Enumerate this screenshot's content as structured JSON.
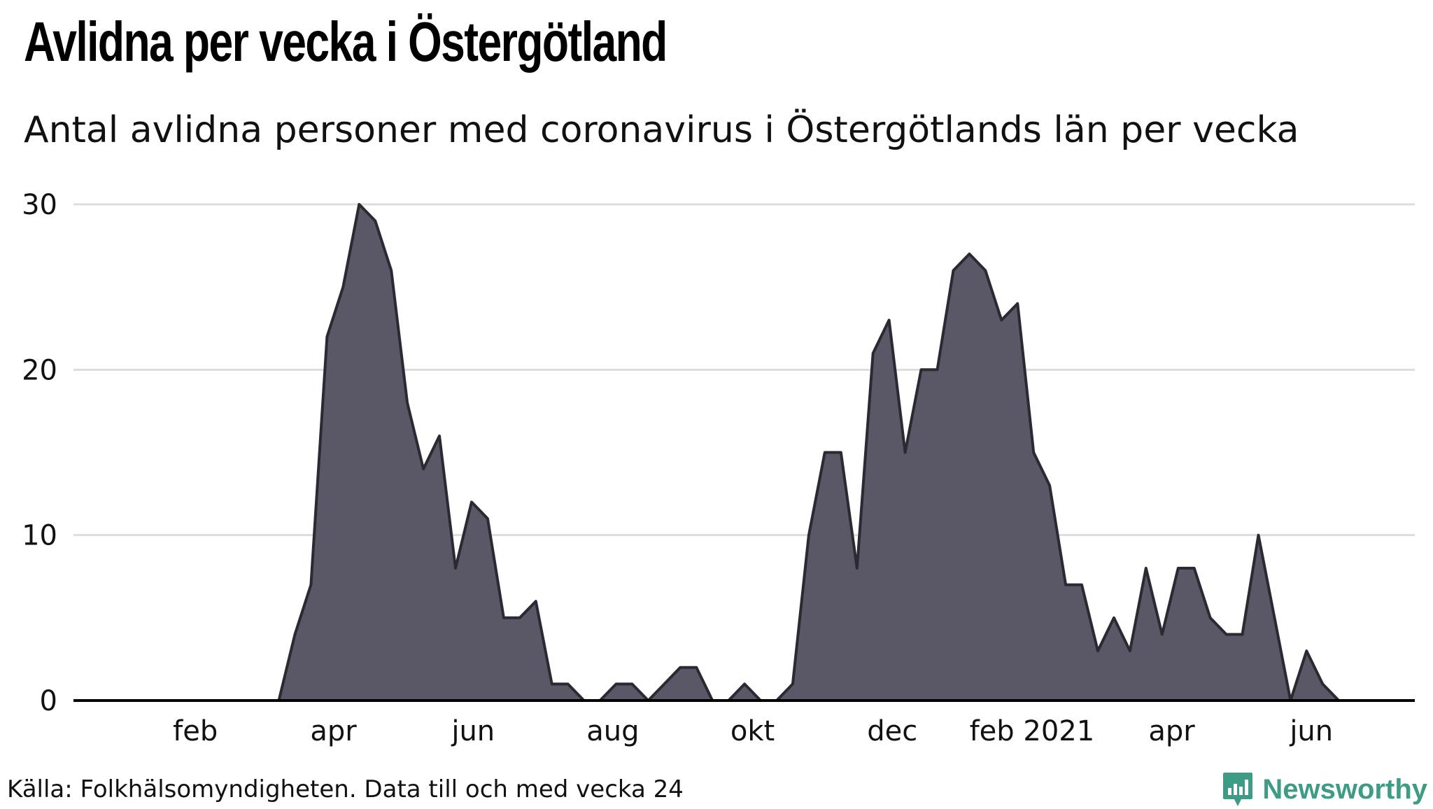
{
  "header": {
    "title": "Avlidna per vecka i Östergötland",
    "subtitle": "Antal avlidna personer med coronavirus i Östergötlands län per vecka"
  },
  "footer": {
    "source": "Källa: Folkhälsomyndigheten. Data till och med vecka 24",
    "brand": "Newsworthy"
  },
  "colors": {
    "area_fill": "#5a5866",
    "line": "#2b2a33",
    "grid": "#dddddd",
    "axis": "#000000",
    "brand": "#3d9b86"
  },
  "icons": {
    "brand": "bar-chart-icon"
  },
  "chart_data": {
    "type": "area",
    "title": "Avlidna per vecka i Östergötland",
    "xlabel": "",
    "ylabel": "",
    "ylim": [
      0,
      30
    ],
    "yticks": [
      0,
      10,
      20,
      30
    ],
    "grid": true,
    "x_axis_unit": "week index (0 = first week shown, early January 2020)",
    "xlim": [
      0,
      76
    ],
    "xticks": [
      {
        "label": "feb",
        "week": 3.8
      },
      {
        "label": "apr",
        "week": 12.4
      },
      {
        "label": "jun",
        "week": 21.1
      },
      {
        "label": "aug",
        "week": 29.8
      },
      {
        "label": "okt",
        "week": 38.5
      },
      {
        "label": "dec",
        "week": 47.2
      },
      {
        "label": "feb 2021",
        "week": 55.9
      },
      {
        "label": "apr",
        "week": 64.6
      },
      {
        "label": "jun",
        "week": 73.3
      }
    ],
    "series": [
      {
        "name": "Avlidna",
        "start_week": 0,
        "values": [
          0,
          0,
          0,
          0,
          0,
          0,
          0,
          0,
          0,
          0,
          4,
          7,
          22,
          25,
          30,
          29,
          26,
          18,
          14,
          16,
          8,
          12,
          11,
          5,
          5,
          6,
          1,
          1,
          0,
          0,
          1,
          1,
          0,
          1,
          2,
          2,
          0,
          0,
          1,
          0,
          0,
          1,
          10,
          15,
          15,
          8,
          21,
          23,
          15,
          20,
          20,
          26,
          27,
          26,
          23,
          24,
          15,
          13,
          7,
          7,
          3,
          5,
          3,
          8,
          4,
          8,
          8,
          5,
          4,
          4,
          10,
          5,
          0,
          3,
          1,
          0
        ]
      }
    ]
  }
}
